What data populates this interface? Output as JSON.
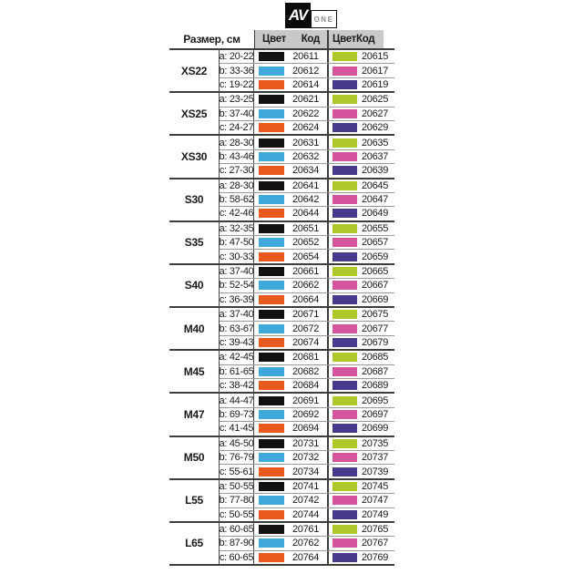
{
  "logo": {
    "av": "AV",
    "one": "ONE"
  },
  "table": {
    "header": {
      "size_label": "Размер, см",
      "color_label": "Цвет",
      "code_label": "Код"
    },
    "palette": {
      "black": "#111111",
      "blue": "#3fa9dc",
      "orange": "#e8591d",
      "green": "#afc92b",
      "pink": "#d4549d",
      "purple": "#453a8b"
    },
    "header_bg": "#c9c9c9",
    "groups": [
      {
        "size": "XS22",
        "rows": [
          {
            "range": "a: 20-22",
            "color1": "black",
            "code1": "20611",
            "color2": "green",
            "code2": "20615"
          },
          {
            "range": "b: 33-36",
            "color1": "blue",
            "code1": "20612",
            "color2": "pink",
            "code2": "20617"
          },
          {
            "range": "c: 19-22",
            "color1": "orange",
            "code1": "20614",
            "color2": "purple",
            "code2": "20619"
          }
        ]
      },
      {
        "size": "XS25",
        "rows": [
          {
            "range": "a: 23-25",
            "color1": "black",
            "code1": "20621",
            "color2": "green",
            "code2": "20625"
          },
          {
            "range": "b: 37-40",
            "color1": "blue",
            "code1": "20622",
            "color2": "pink",
            "code2": "20627"
          },
          {
            "range": "c: 24-27",
            "color1": "orange",
            "code1": "20624",
            "color2": "purple",
            "code2": "20629"
          }
        ]
      },
      {
        "size": "XS30",
        "rows": [
          {
            "range": "a: 28-30",
            "color1": "black",
            "code1": "20631",
            "color2": "green",
            "code2": "20635"
          },
          {
            "range": "b: 43-46",
            "color1": "blue",
            "code1": "20632",
            "color2": "pink",
            "code2": "20637"
          },
          {
            "range": "c: 27-30",
            "color1": "orange",
            "code1": "20634",
            "color2": "purple",
            "code2": "20639"
          }
        ]
      },
      {
        "size": "S30",
        "rows": [
          {
            "range": "a: 28-30",
            "color1": "black",
            "code1": "20641",
            "color2": "green",
            "code2": "20645"
          },
          {
            "range": "b: 58-62",
            "color1": "blue",
            "code1": "20642",
            "color2": "pink",
            "code2": "20647"
          },
          {
            "range": "c: 42-46",
            "color1": "orange",
            "code1": "20644",
            "color2": "purple",
            "code2": "20649"
          }
        ]
      },
      {
        "size": "S35",
        "rows": [
          {
            "range": "a: 32-35",
            "color1": "black",
            "code1": "20651",
            "color2": "green",
            "code2": "20655"
          },
          {
            "range": "b: 47-50",
            "color1": "blue",
            "code1": "20652",
            "color2": "pink",
            "code2": "20657"
          },
          {
            "range": "c: 30-33",
            "color1": "orange",
            "code1": "20654",
            "color2": "purple",
            "code2": "20659"
          }
        ]
      },
      {
        "size": "S40",
        "rows": [
          {
            "range": "a: 37-40",
            "color1": "black",
            "code1": "20661",
            "color2": "green",
            "code2": "20665"
          },
          {
            "range": "b: 52-54",
            "color1": "blue",
            "code1": "20662",
            "color2": "pink",
            "code2": "20667"
          },
          {
            "range": "c: 36-39",
            "color1": "orange",
            "code1": "20664",
            "color2": "purple",
            "code2": "20669"
          }
        ]
      },
      {
        "size": "M40",
        "rows": [
          {
            "range": "a: 37-40",
            "color1": "black",
            "code1": "20671",
            "color2": "green",
            "code2": "20675"
          },
          {
            "range": "b: 63-67",
            "color1": "blue",
            "code1": "20672",
            "color2": "pink",
            "code2": "20677"
          },
          {
            "range": "c: 39-43",
            "color1": "orange",
            "code1": "20674",
            "color2": "purple",
            "code2": "20679"
          }
        ]
      },
      {
        "size": "M45",
        "rows": [
          {
            "range": "a: 42-45",
            "color1": "black",
            "code1": "20681",
            "color2": "green",
            "code2": "20685"
          },
          {
            "range": "b: 61-65",
            "color1": "blue",
            "code1": "20682",
            "color2": "pink",
            "code2": "20687"
          },
          {
            "range": "c: 38-42",
            "color1": "orange",
            "code1": "20684",
            "color2": "purple",
            "code2": "20689"
          }
        ]
      },
      {
        "size": "M47",
        "rows": [
          {
            "range": "a: 44-47",
            "color1": "black",
            "code1": "20691",
            "color2": "green",
            "code2": "20695"
          },
          {
            "range": "b: 69-73",
            "color1": "blue",
            "code1": "20692",
            "color2": "pink",
            "code2": "20697"
          },
          {
            "range": "c: 41-45",
            "color1": "orange",
            "code1": "20694",
            "color2": "purple",
            "code2": "20699"
          }
        ]
      },
      {
        "size": "M50",
        "rows": [
          {
            "range": "a: 45-50",
            "color1": "black",
            "code1": "20731",
            "color2": "green",
            "code2": "20735"
          },
          {
            "range": "b: 76-79",
            "color1": "blue",
            "code1": "20732",
            "color2": "pink",
            "code2": "20737"
          },
          {
            "range": "c: 55-61",
            "color1": "orange",
            "code1": "20734",
            "color2": "purple",
            "code2": "20739"
          }
        ]
      },
      {
        "size": "L55",
        "rows": [
          {
            "range": "a: 50-55",
            "color1": "black",
            "code1": "20741",
            "color2": "green",
            "code2": "20745"
          },
          {
            "range": "b: 77-80",
            "color1": "blue",
            "code1": "20742",
            "color2": "pink",
            "code2": "20747"
          },
          {
            "range": "c: 50-55",
            "color1": "orange",
            "code1": "20744",
            "color2": "purple",
            "code2": "20749"
          }
        ]
      },
      {
        "size": "L65",
        "rows": [
          {
            "range": "a: 60-65",
            "color1": "black",
            "code1": "20761",
            "color2": "green",
            "code2": "20765"
          },
          {
            "range": "b: 87-90",
            "color1": "blue",
            "code1": "20762",
            "color2": "pink",
            "code2": "20767"
          },
          {
            "range": "c: 60-65",
            "color1": "orange",
            "code1": "20764",
            "color2": "purple",
            "code2": "20769"
          }
        ]
      }
    ]
  }
}
